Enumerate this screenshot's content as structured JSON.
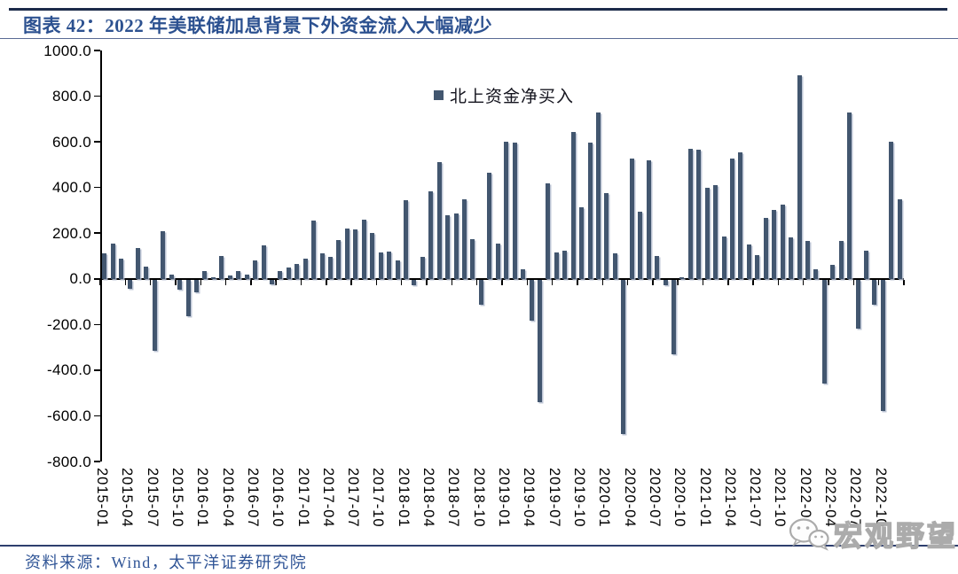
{
  "header": {
    "title": "图表 42：2022 年美联储加息背景下外资金流入大幅减少"
  },
  "legend": {
    "label": "北上资金净买入"
  },
  "footer": {
    "source": "资料来源：Wind，太平洋证券研究院"
  },
  "watermark": {
    "label": "宏观野望",
    "icon": "wechat-icon"
  },
  "colors": {
    "bar": "#42566F",
    "bar_shadow": "#B0BACC",
    "title_blue": "#2C5190",
    "source_blue": "#2F5496",
    "rule_navy": "#2E3F6E",
    "axis_black": "#000000",
    "watermark_gray": "#ABABAB"
  },
  "chart_data": {
    "type": "bar",
    "title": "2022 年美联储加息背景下外资金流入大幅减少",
    "series_name": "北上资金净买入",
    "legend_position": "top-center",
    "grid": false,
    "ylim": [
      -800,
      1000
    ],
    "y_tick_step": 200,
    "y_tick_labels": [
      "1000.0",
      "800.0",
      "600.0",
      "400.0",
      "200.0",
      "0.0",
      "-200.0",
      "-400.0",
      "-600.0",
      "-800.0"
    ],
    "x_tick_interval_months": 3,
    "x_tick_labels": [
      "2015-01",
      "2015-04",
      "2015-07",
      "2015-10",
      "2016-01",
      "2016-04",
      "2016-07",
      "2016-10",
      "2017-01",
      "2017-04",
      "2017-07",
      "2017-10",
      "2018-01",
      "2018-04",
      "2018-07",
      "2018-10",
      "2019-01",
      "2019-04",
      "2019-07",
      "2019-10",
      "2020-01",
      "2020-04",
      "2020-07",
      "2020-10",
      "2021-01",
      "2021-04",
      "2021-07",
      "2021-10",
      "2022-01",
      "2022-04",
      "2022-07",
      "2022-10"
    ],
    "categories": [
      "2015-01",
      "2015-02",
      "2015-03",
      "2015-04",
      "2015-05",
      "2015-06",
      "2015-07",
      "2015-08",
      "2015-09",
      "2015-10",
      "2015-11",
      "2015-12",
      "2016-01",
      "2016-02",
      "2016-03",
      "2016-04",
      "2016-05",
      "2016-06",
      "2016-07",
      "2016-08",
      "2016-09",
      "2016-10",
      "2016-11",
      "2016-12",
      "2017-01",
      "2017-02",
      "2017-03",
      "2017-04",
      "2017-05",
      "2017-06",
      "2017-07",
      "2017-08",
      "2017-09",
      "2017-10",
      "2017-11",
      "2017-12",
      "2018-01",
      "2018-02",
      "2018-03",
      "2018-04",
      "2018-05",
      "2018-06",
      "2018-07",
      "2018-08",
      "2018-09",
      "2018-10",
      "2018-11",
      "2018-12",
      "2019-01",
      "2019-02",
      "2019-03",
      "2019-04",
      "2019-05",
      "2019-06",
      "2019-07",
      "2019-08",
      "2019-09",
      "2019-10",
      "2019-11",
      "2019-12",
      "2020-01",
      "2020-02",
      "2020-03",
      "2020-04",
      "2020-05",
      "2020-06",
      "2020-07",
      "2020-08",
      "2020-09",
      "2020-10",
      "2020-11",
      "2020-12",
      "2021-01",
      "2021-02",
      "2021-03",
      "2021-04",
      "2021-05",
      "2021-06",
      "2021-07",
      "2021-08",
      "2021-09",
      "2021-10",
      "2021-11",
      "2021-12",
      "2022-01",
      "2022-02",
      "2022-03",
      "2022-04",
      "2022-05",
      "2022-06",
      "2022-07",
      "2022-08",
      "2022-09",
      "2022-10",
      "2022-11",
      "2022-12"
    ],
    "values": [
      110,
      155,
      90,
      -40,
      135,
      55,
      -310,
      210,
      20,
      -45,
      -160,
      -55,
      35,
      5,
      100,
      15,
      35,
      20,
      80,
      145,
      -20,
      35,
      50,
      65,
      90,
      255,
      110,
      95,
      170,
      220,
      215,
      260,
      200,
      115,
      120,
      80,
      345,
      -25,
      95,
      385,
      510,
      280,
      285,
      350,
      175,
      -110,
      465,
      155,
      600,
      595,
      40,
      -180,
      -535,
      420,
      115,
      125,
      645,
      315,
      595,
      730,
      375,
      110,
      -675,
      525,
      295,
      520,
      100,
      -25,
      -325,
      5,
      570,
      565,
      400,
      410,
      185,
      525,
      555,
      150,
      105,
      265,
      300,
      325,
      180,
      890,
      165,
      40,
      -455,
      60,
      165,
      730,
      -215,
      125,
      -110,
      -575,
      600,
      350
    ]
  }
}
